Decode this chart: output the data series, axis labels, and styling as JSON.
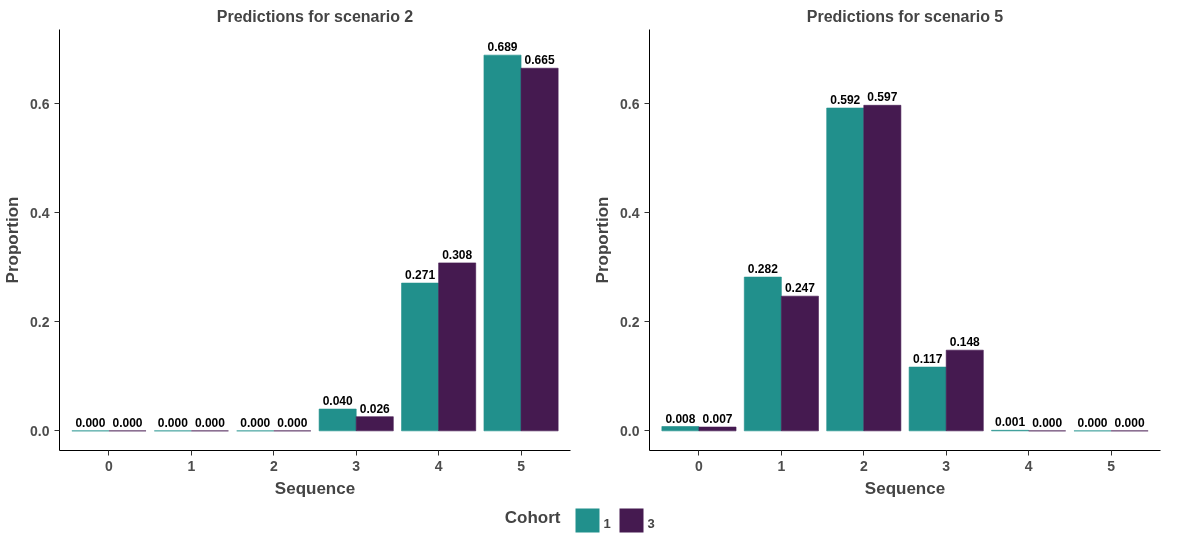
{
  "chart_data": [
    {
      "type": "bar",
      "title": "Predictions for scenario 2",
      "xlabel": "Sequence",
      "ylabel": "Proportion",
      "legend_title": "Cohort",
      "legend": "bottom",
      "categories": [
        "0",
        "1",
        "2",
        "3",
        "4",
        "5"
      ],
      "ylim": [
        -0.036,
        0.736
      ],
      "yticks": [
        {
          "value": 0,
          "label": "0.0"
        },
        {
          "value": 0.2,
          "label": "0.2"
        },
        {
          "value": 0.4,
          "label": "0.4"
        },
        {
          "value": 0.6,
          "label": "0.6"
        }
      ],
      "grid": false,
      "series": [
        {
          "name": "1",
          "color": "#21908c",
          "values": [
            0,
            0,
            0,
            0.04,
            0.271,
            0.689
          ],
          "value_labels": [
            "0.000",
            "0.000",
            "0.000",
            "0.040",
            "0.271",
            "0.689"
          ]
        },
        {
          "name": "3",
          "color": "#451a50",
          "values": [
            0,
            0,
            0,
            0.026,
            0.308,
            0.665
          ],
          "value_labels": [
            "0.000",
            "0.000",
            "0.000",
            "0.026",
            "0.308",
            "0.665"
          ]
        }
      ]
    },
    {
      "type": "bar",
      "title": "Predictions for scenario 5",
      "xlabel": "Sequence",
      "ylabel": "Proportion",
      "categories": [
        "0",
        "1",
        "2",
        "3",
        "4",
        "5"
      ],
      "ylim": [
        -0.036,
        0.736
      ],
      "yticks": [
        {
          "value": 0,
          "label": "0.0"
        },
        {
          "value": 0.2,
          "label": "0.2"
        },
        {
          "value": 0.4,
          "label": "0.4"
        },
        {
          "value": 0.6,
          "label": "0.6"
        }
      ],
      "grid": false,
      "series": [
        {
          "name": "1",
          "color": "#21908c",
          "values": [
            0.008,
            0.282,
            0.592,
            0.117,
            0.001,
            0
          ],
          "value_labels": [
            "0.008",
            "0.282",
            "0.592",
            "0.117",
            "0.001",
            "0.000"
          ]
        },
        {
          "name": "3",
          "color": "#451a50",
          "values": [
            0.007,
            0.247,
            0.597,
            0.148,
            0,
            0
          ],
          "value_labels": [
            "0.007",
            "0.247",
            "0.597",
            "0.148",
            "0.000",
            "0.000"
          ]
        }
      ]
    }
  ]
}
